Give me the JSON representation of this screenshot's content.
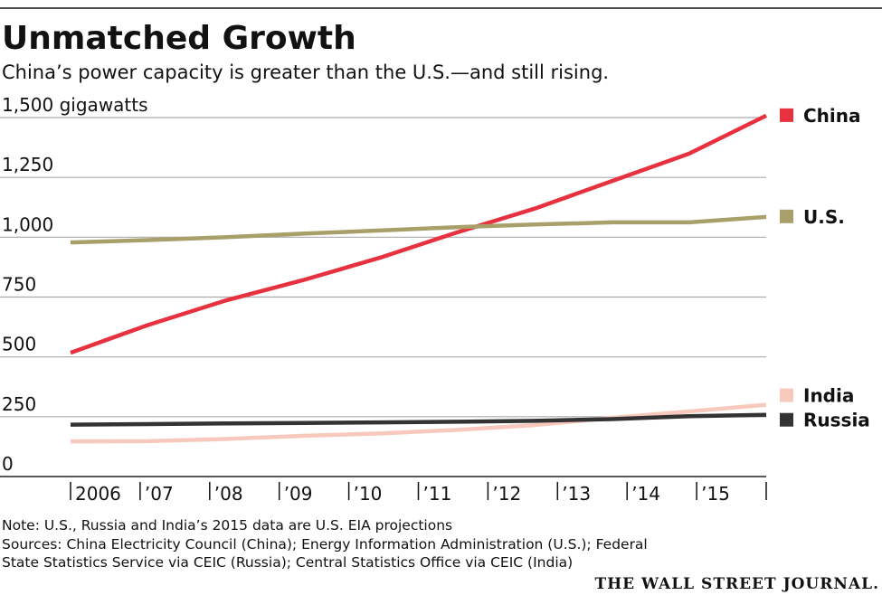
{
  "chart_data": {
    "type": "line",
    "title": "Unmatched Growth",
    "subtitle": "China’s power capacity is greater than the U.S.—and still rising.",
    "categories": [
      "2006",
      "’07",
      "’08",
      "’09",
      "’10",
      "’11",
      "’12",
      "’13",
      "’14",
      "’15"
    ],
    "series": [
      {
        "name": "China",
        "color": "#e8313f",
        "values": [
          517,
          633,
          735,
          820,
          914,
          1020,
          1119,
          1234,
          1349,
          1508
        ]
      },
      {
        "name": "U.S.",
        "color": "#a89f6a",
        "values": [
          978,
          988,
          1000,
          1015,
          1028,
          1042,
          1053,
          1062,
          1062,
          1085
        ]
      },
      {
        "name": "India",
        "color": "#f7c9bd",
        "values": [
          147,
          148,
          157,
          170,
          180,
          195,
          215,
          245,
          272,
          300
        ]
      },
      {
        "name": "Russia",
        "color": "#333333",
        "values": [
          217,
          219,
          222,
          224,
          226,
          229,
          233,
          240,
          252,
          258
        ]
      }
    ],
    "ylim": [
      0,
      1500
    ],
    "yticks": [
      0,
      250,
      500,
      750,
      {
        "value": 1000,
        "label": "1,000"
      },
      {
        "value": 1250,
        "label": "1,250"
      },
      {
        "value": 1500,
        "label": "1,500 gigawatts"
      }
    ],
    "grid": true,
    "note": "Note: U.S., Russia and India’s 2015 data are U.S. EIA projections",
    "sources": [
      "Sources: China Electricity Council (China); Energy Information Administration (U.S.); Federal",
      "State Statistics Service via CEIC (Russia); Central Statistics Office via CEIC (India)"
    ],
    "credit": "THE WALL STREET JOURNAL."
  }
}
